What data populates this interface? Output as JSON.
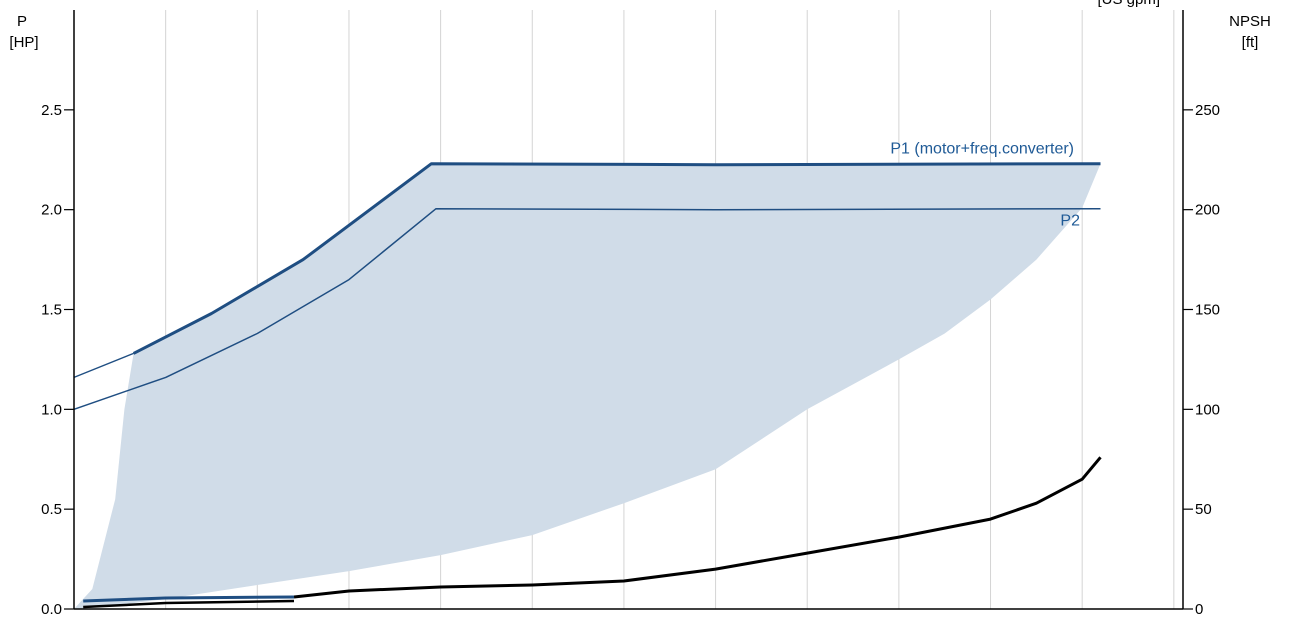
{
  "chart_data": {
    "type": "line",
    "left_axis": {
      "label": "P",
      "unit": "[HP]",
      "ylim": [
        0,
        3.0
      ],
      "ticks": [
        "0.0",
        "0.5",
        "1.0",
        "1.5",
        "2.0",
        "2.5"
      ],
      "tick_values": [
        0,
        0.5,
        1.0,
        1.5,
        2.0,
        2.5
      ]
    },
    "right_axis": {
      "label": "NPSH",
      "unit": "[ft]",
      "ylim": [
        0,
        300
      ],
      "ticks": [
        "0",
        "50",
        "100",
        "150",
        "200",
        "250"
      ],
      "tick_values": [
        0,
        50,
        100,
        150,
        200,
        250
      ]
    },
    "x_axis": {
      "label": "",
      "xlim": [
        0,
        12.1
      ],
      "gridlines": [
        1,
        2,
        3,
        4,
        5,
        6,
        7,
        8,
        9,
        10,
        11,
        12
      ],
      "corner_unit_fragment": "[US gpm]"
    },
    "grid": true,
    "colors": {
      "p1": "#1f4e82",
      "p2": "#1f4e82",
      "npsh": "#000000",
      "band": "#d0dce8",
      "label": "#1f5a96",
      "grid": "#d4d4d4"
    },
    "series": [
      {
        "name": "P1 (motor+freq.converter)",
        "axis": "left",
        "points": [
          [
            0,
            1.16
          ],
          [
            0.65,
            1.28
          ],
          [
            1.5,
            1.48
          ],
          [
            2.5,
            1.75
          ],
          [
            3.9,
            2.23
          ],
          [
            7,
            2.225
          ],
          [
            11.2,
            2.23
          ]
        ],
        "thin_lead_in_until": 0.65
      },
      {
        "name": "P2",
        "axis": "left",
        "points": [
          [
            0,
            1.0
          ],
          [
            1.0,
            1.16
          ],
          [
            2.0,
            1.38
          ],
          [
            3.0,
            1.65
          ],
          [
            3.95,
            2.005
          ],
          [
            7,
            2.0
          ],
          [
            11.2,
            2.005
          ]
        ]
      },
      {
        "axis": "right",
        "points": [
          [
            2.4,
            6
          ],
          [
            3.0,
            9
          ],
          [
            4.0,
            11
          ],
          [
            5.0,
            12
          ],
          [
            6.0,
            14
          ],
          [
            7.0,
            20
          ],
          [
            8.0,
            28
          ],
          [
            9.0,
            36
          ],
          [
            10.0,
            45
          ],
          [
            10.5,
            53
          ],
          [
            11.0,
            65
          ],
          [
            11.2,
            76
          ]
        ]
      },
      {
        "axis": "left",
        "low_speed_curves": true,
        "points_a": [
          [
            0.1,
            0.04
          ],
          [
            1.0,
            0.055
          ],
          [
            2.4,
            0.06
          ]
        ],
        "points_b": [
          [
            0.1,
            0.01
          ],
          [
            1.0,
            0.03
          ],
          [
            2.4,
            0.04
          ]
        ]
      }
    ],
    "operating_area": {
      "axis": "left",
      "upper": [
        [
          0,
          0
        ],
        [
          0.2,
          0.1
        ],
        [
          0.45,
          0.55
        ],
        [
          0.55,
          1.0
        ],
        [
          0.65,
          1.28
        ],
        [
          1.5,
          1.48
        ],
        [
          2.5,
          1.75
        ],
        [
          3.9,
          2.23
        ],
        [
          7,
          2.225
        ],
        [
          11.2,
          2.23
        ]
      ],
      "lower": [
        [
          11.2,
          2.23
        ],
        [
          11.0,
          2.01
        ],
        [
          10.5,
          1.75
        ],
        [
          10.0,
          1.55
        ],
        [
          9.5,
          1.38
        ],
        [
          9.0,
          1.25
        ],
        [
          8.0,
          1.0
        ],
        [
          7.0,
          0.7
        ],
        [
          6.0,
          0.53
        ],
        [
          5.0,
          0.37
        ],
        [
          4.0,
          0.27
        ],
        [
          3.0,
          0.19
        ],
        [
          2.0,
          0.12
        ],
        [
          1.0,
          0.05
        ],
        [
          0.3,
          0.01
        ],
        [
          0,
          0
        ]
      ]
    }
  }
}
